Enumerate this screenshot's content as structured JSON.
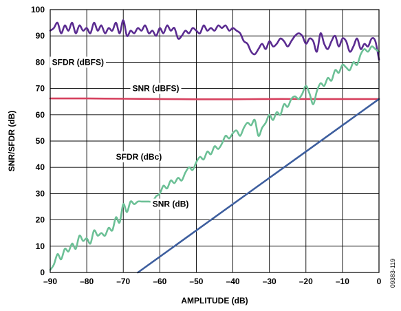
{
  "figure_id": "09383-119",
  "chart_data": {
    "type": "line",
    "xlabel": "AMPLITUDE (dB)",
    "ylabel": "SNR/SFDR (dB)",
    "xlim": [
      -90,
      0
    ],
    "ylim": [
      0,
      100
    ],
    "xticks": [
      -90,
      -80,
      -70,
      -60,
      -50,
      -40,
      -30,
      -20,
      -10,
      0
    ],
    "xtick_labels": [
      "–90",
      "–80",
      "–70",
      "–60",
      "–50",
      "–40",
      "–30",
      "–20",
      "–10",
      "0"
    ],
    "yticks": [
      0,
      10,
      20,
      30,
      40,
      50,
      60,
      70,
      80,
      90,
      100
    ],
    "grid": true,
    "series": [
      {
        "name": "SFDR (dBFS)",
        "color": "#5b2c91",
        "x": [
          -90,
          -89,
          -88,
          -87,
          -86,
          -85,
          -84,
          -83,
          -82,
          -81,
          -80,
          -79,
          -78,
          -77,
          -76,
          -75,
          -74,
          -73,
          -72,
          -71,
          -70,
          -69,
          -68,
          -67,
          -66,
          -65,
          -64,
          -63,
          -62,
          -61,
          -60,
          -59,
          -58,
          -57,
          -56,
          -55,
          -54,
          -53,
          -52,
          -51,
          -50,
          -49,
          -48,
          -47,
          -46,
          -45,
          -44,
          -43,
          -42,
          -41,
          -40,
          -39,
          -38,
          -37,
          -36,
          -35,
          -34,
          -33,
          -32,
          -31,
          -30,
          -29,
          -28,
          -27,
          -26,
          -25,
          -24,
          -23,
          -22,
          -21,
          -20,
          -19,
          -18,
          -17,
          -16,
          -15,
          -14,
          -13,
          -12,
          -11,
          -10,
          -9,
          -8,
          -7,
          -6,
          -5,
          -4,
          -3,
          -2,
          -1,
          0
        ],
        "y": [
          92,
          93,
          95,
          91,
          94,
          92,
          95,
          91,
          94,
          92,
          93,
          91,
          95,
          92,
          94,
          91,
          93,
          92,
          95,
          91,
          96,
          90,
          92,
          91,
          93,
          92,
          94,
          91,
          92,
          90,
          93,
          91,
          94,
          92,
          93,
          89,
          90,
          92,
          91,
          93,
          92,
          91,
          94,
          92,
          93,
          92,
          94,
          93,
          94,
          92,
          93,
          92,
          91,
          88,
          87,
          84,
          83,
          85,
          87,
          85,
          88,
          86,
          87,
          89,
          88,
          86,
          88,
          90,
          91,
          90,
          87,
          89,
          88,
          84,
          91,
          87,
          85,
          88,
          90,
          86,
          89,
          88,
          84,
          86,
          89,
          85,
          87,
          86,
          89,
          88,
          81
        ]
      },
      {
        "name": "SNR (dBFS)",
        "color": "#d6405e",
        "x": [
          -90,
          -80,
          -70,
          -60,
          -50,
          -40,
          -30,
          -20,
          -10,
          0
        ],
        "y": [
          66.2,
          66.2,
          66.1,
          66.0,
          65.9,
          65.9,
          66.0,
          66.0,
          66.0,
          66.0
        ]
      },
      {
        "name": "SFDR (dBc)",
        "color": "#6cc096",
        "x": [
          -90,
          -89,
          -88,
          -87,
          -86,
          -85,
          -84,
          -83,
          -82,
          -81,
          -80,
          -79,
          -78,
          -77,
          -76,
          -75,
          -74,
          -73,
          -72,
          -71,
          -70,
          -69,
          -68,
          -67,
          -66,
          -65,
          -64,
          -63,
          -62,
          -61,
          -60,
          -59,
          -58,
          -57,
          -56,
          -55,
          -54,
          -53,
          -52,
          -51,
          -50,
          -49,
          -48,
          -47,
          -46,
          -45,
          -44,
          -43,
          -42,
          -41,
          -40,
          -39,
          -38,
          -37,
          -36,
          -35,
          -34,
          -33,
          -32,
          -31,
          -30,
          -29,
          -28,
          -27,
          -26,
          -25,
          -24,
          -23,
          -22,
          -21,
          -20,
          -19,
          -18,
          -17,
          -16,
          -15,
          -14,
          -13,
          -12,
          -11,
          -10,
          -9,
          -8,
          -7,
          -6,
          -5,
          -4,
          -3,
          -2,
          -1,
          0
        ],
        "y": [
          1,
          3,
          7,
          5,
          9,
          8,
          11,
          9,
          14,
          12,
          13,
          11,
          16,
          14,
          15,
          14,
          17,
          16,
          21,
          19,
          26,
          23,
          27,
          26,
          27,
          27,
          27,
          27,
          27,
          29,
          30,
          33,
          32,
          35,
          34,
          36,
          35,
          38,
          40,
          39,
          42,
          44,
          43,
          46,
          45,
          48,
          47,
          49,
          52,
          51,
          53,
          54,
          52,
          55,
          57,
          56,
          58,
          52,
          55,
          57,
          60,
          58,
          61,
          60,
          64,
          63,
          66,
          67,
          66,
          68,
          71,
          68,
          64,
          69,
          72,
          71,
          74,
          73,
          77,
          76,
          79,
          78,
          77,
          80,
          79,
          83,
          85,
          84,
          86,
          85,
          84
        ]
      },
      {
        "name": "SNR (dB)",
        "color": "#3d5e9e",
        "x": [
          -66,
          0
        ],
        "y": [
          0,
          66
        ]
      }
    ],
    "annotations": [
      "SFDR (dBFS)",
      "SNR (dBFS)",
      "SFDR (dBc)",
      "SNR (dB)"
    ]
  }
}
